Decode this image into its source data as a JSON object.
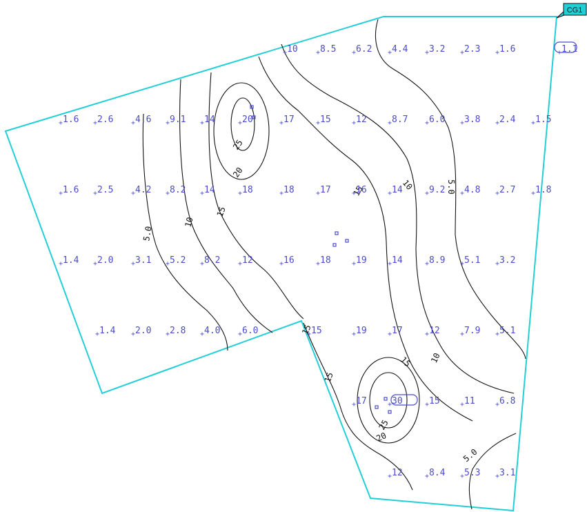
{
  "tag": {
    "label": "CG1"
  },
  "colors": {
    "boundary": "#22cfd6",
    "points": "#4a4acd",
    "contours": "#111111",
    "tag_fill": "#22cfd6",
    "background": "#ffffff"
  },
  "contour_labels": [
    "5.0",
    "10",
    "15",
    "20",
    "25"
  ],
  "points": [
    "10",
    "8.5",
    "6.2",
    "4.4",
    "3.2",
    "2.3",
    "1.6",
    "1.1",
    "1.6",
    "2.6",
    "4.6",
    "9.1",
    "14",
    "20",
    "17",
    "15",
    "12",
    "8.7",
    "6.0",
    "3.8",
    "2.4",
    "1.5",
    "1.6",
    "2.5",
    "4.2",
    "8.2",
    "14",
    "18",
    "18",
    "17",
    "16",
    "14",
    "9.2",
    "4.8",
    "2.7",
    "1.8",
    "1.4",
    "2.0",
    "3.1",
    "5.2",
    "8.2",
    "12",
    "16",
    "18",
    "19",
    "14",
    "8.9",
    "5.1",
    "3.2",
    "1.4",
    "2.0",
    "2.8",
    "4.0",
    "6.0",
    "15",
    "19",
    "17",
    "12",
    "7.9",
    "5.1",
    "17",
    "30",
    "15",
    "11",
    "6.8",
    "12",
    "8.4",
    "5.3",
    "3.1"
  ]
}
